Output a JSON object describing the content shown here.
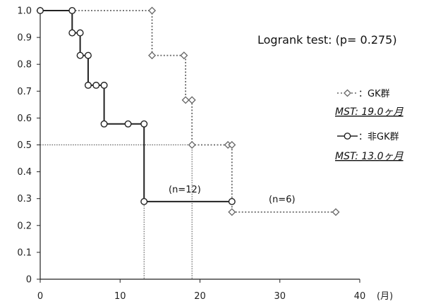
{
  "chart_data": {
    "type": "line",
    "subtype": "kaplan-meier",
    "xlim": [
      0,
      40
    ],
    "ylim": [
      0,
      1.0
    ],
    "x_ticks": [
      0,
      10,
      20,
      30,
      40
    ],
    "y_ticks": [
      "0",
      "0.1",
      "0.2",
      "0.3",
      "0.4",
      "0.5",
      "0.6",
      "0.7",
      "0.8",
      "0.9",
      "1.0"
    ],
    "x_unit_label": "(月)",
    "grid": false,
    "test_label": "Logrank test: (p= 0.275)",
    "series": [
      {
        "name": "GK群",
        "style": "dotted",
        "color": "#666666",
        "marker": "diamond",
        "steps": [
          [
            0,
            1.0
          ],
          [
            14,
            0.833
          ],
          [
            18.2,
            0.667
          ],
          [
            19,
            0.5
          ],
          [
            24,
            0.25
          ],
          [
            37,
            0.25
          ]
        ],
        "markers": [
          [
            0,
            1.0
          ],
          [
            14,
            1.0
          ],
          [
            14,
            0.833
          ],
          [
            18,
            0.833
          ],
          [
            18.2,
            0.667
          ],
          [
            19,
            0.667
          ],
          [
            19,
            0.5
          ],
          [
            23.5,
            0.5
          ],
          [
            24,
            0.5
          ],
          [
            24,
            0.25
          ],
          [
            37,
            0.25
          ]
        ],
        "mst_label": "MST: 19.0ヶ月",
        "n_label": "(n=6)"
      },
      {
        "name": "非GK群",
        "style": "solid",
        "color": "#222222",
        "marker": "circle",
        "steps": [
          [
            0,
            1.0
          ],
          [
            4,
            0.917
          ],
          [
            5,
            0.833
          ],
          [
            6,
            0.722
          ],
          [
            8,
            0.578
          ],
          [
            13,
            0.289
          ],
          [
            24,
            0.289
          ]
        ],
        "markers": [
          [
            0,
            1.0
          ],
          [
            4,
            1.0
          ],
          [
            4,
            0.917
          ],
          [
            5,
            0.917
          ],
          [
            5,
            0.833
          ],
          [
            6,
            0.833
          ],
          [
            6,
            0.722
          ],
          [
            7,
            0.722
          ],
          [
            8,
            0.722
          ],
          [
            8,
            0.578
          ],
          [
            11,
            0.578
          ],
          [
            13,
            0.578
          ],
          [
            13,
            0.289
          ],
          [
            24,
            0.289
          ]
        ],
        "mst_label": "MST: 13.0ヶ月",
        "n_label": "(n=12)"
      }
    ],
    "median_line": {
      "y": 0.5,
      "x_values": [
        13,
        19
      ]
    }
  },
  "legend": {
    "gk_label": "：GK群",
    "non_gk_label": "：非GK群"
  }
}
